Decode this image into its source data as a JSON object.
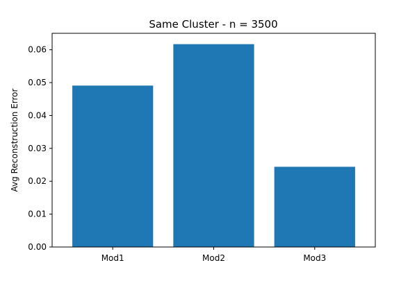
{
  "chart_data": {
    "type": "bar",
    "title": "Same Cluster - n = 3500",
    "xlabel": "",
    "ylabel": "Avg Reconstruction Error",
    "categories": [
      "Mod1",
      "Mod2",
      "Mod3"
    ],
    "values": [
      0.0491,
      0.0617,
      0.0244
    ],
    "ylim": [
      0,
      0.065
    ],
    "yticks": [
      0.0,
      0.01,
      0.02,
      0.03,
      0.04,
      0.05,
      0.06
    ],
    "ytick_labels": [
      "0.00",
      "0.01",
      "0.02",
      "0.03",
      "0.04",
      "0.05",
      "0.06"
    ],
    "bar_color": "#1f77b4",
    "grid": false,
    "legend": "none"
  }
}
